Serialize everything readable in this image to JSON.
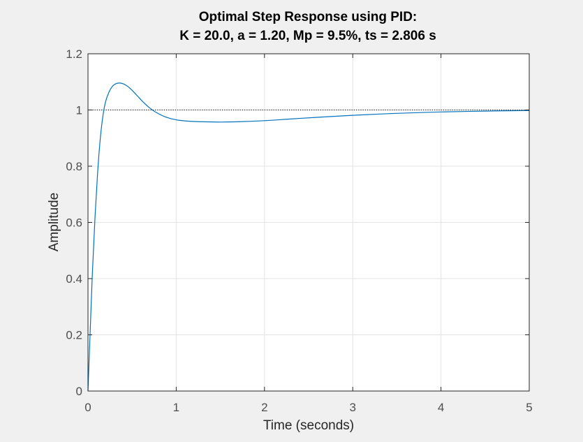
{
  "chart_data": {
    "type": "line",
    "title_line1": "Optimal Step Response using PID:",
    "title_line2": "K = 20.0, a = 1.20, Mp = 9.5%, ts = 2.806 s",
    "xlabel": "Time (seconds)",
    "ylabel": "Amplitude",
    "xlim": [
      0,
      5
    ],
    "ylim": [
      0,
      1.2
    ],
    "xticks": [
      0,
      1,
      2,
      3,
      4,
      5
    ],
    "xtick_labels": [
      "0",
      "1",
      "2",
      "3",
      "4",
      "5"
    ],
    "yticks": [
      0,
      0.2,
      0.4,
      0.6,
      0.8,
      1,
      1.2
    ],
    "ytick_labels": [
      "0",
      "0.2",
      "0.4",
      "0.6",
      "0.8",
      "1",
      "1.2"
    ],
    "grid": true,
    "reference_line": {
      "y": 1,
      "style": "dotted",
      "color": "#000000"
    },
    "series": [
      {
        "color": "#0072BD",
        "x": [
          0,
          0.02,
          0.05,
          0.08,
          0.11,
          0.14,
          0.17,
          0.2,
          0.24,
          0.28,
          0.32,
          0.36,
          0.4,
          0.45,
          0.5,
          0.56,
          0.62,
          0.7,
          0.78,
          0.88,
          1.0,
          1.15,
          1.3,
          1.5,
          1.7,
          2.0,
          2.3,
          2.6,
          3.0,
          3.5,
          4.0,
          4.5,
          5.0
        ],
        "y": [
          0,
          0.17,
          0.42,
          0.62,
          0.78,
          0.9,
          0.98,
          1.03,
          1.065,
          1.085,
          1.094,
          1.096,
          1.093,
          1.084,
          1.07,
          1.05,
          1.03,
          1.007,
          0.99,
          0.975,
          0.965,
          0.96,
          0.958,
          0.957,
          0.958,
          0.962,
          0.968,
          0.974,
          0.981,
          0.988,
          0.993,
          0.996,
          0.998
        ]
      }
    ]
  }
}
